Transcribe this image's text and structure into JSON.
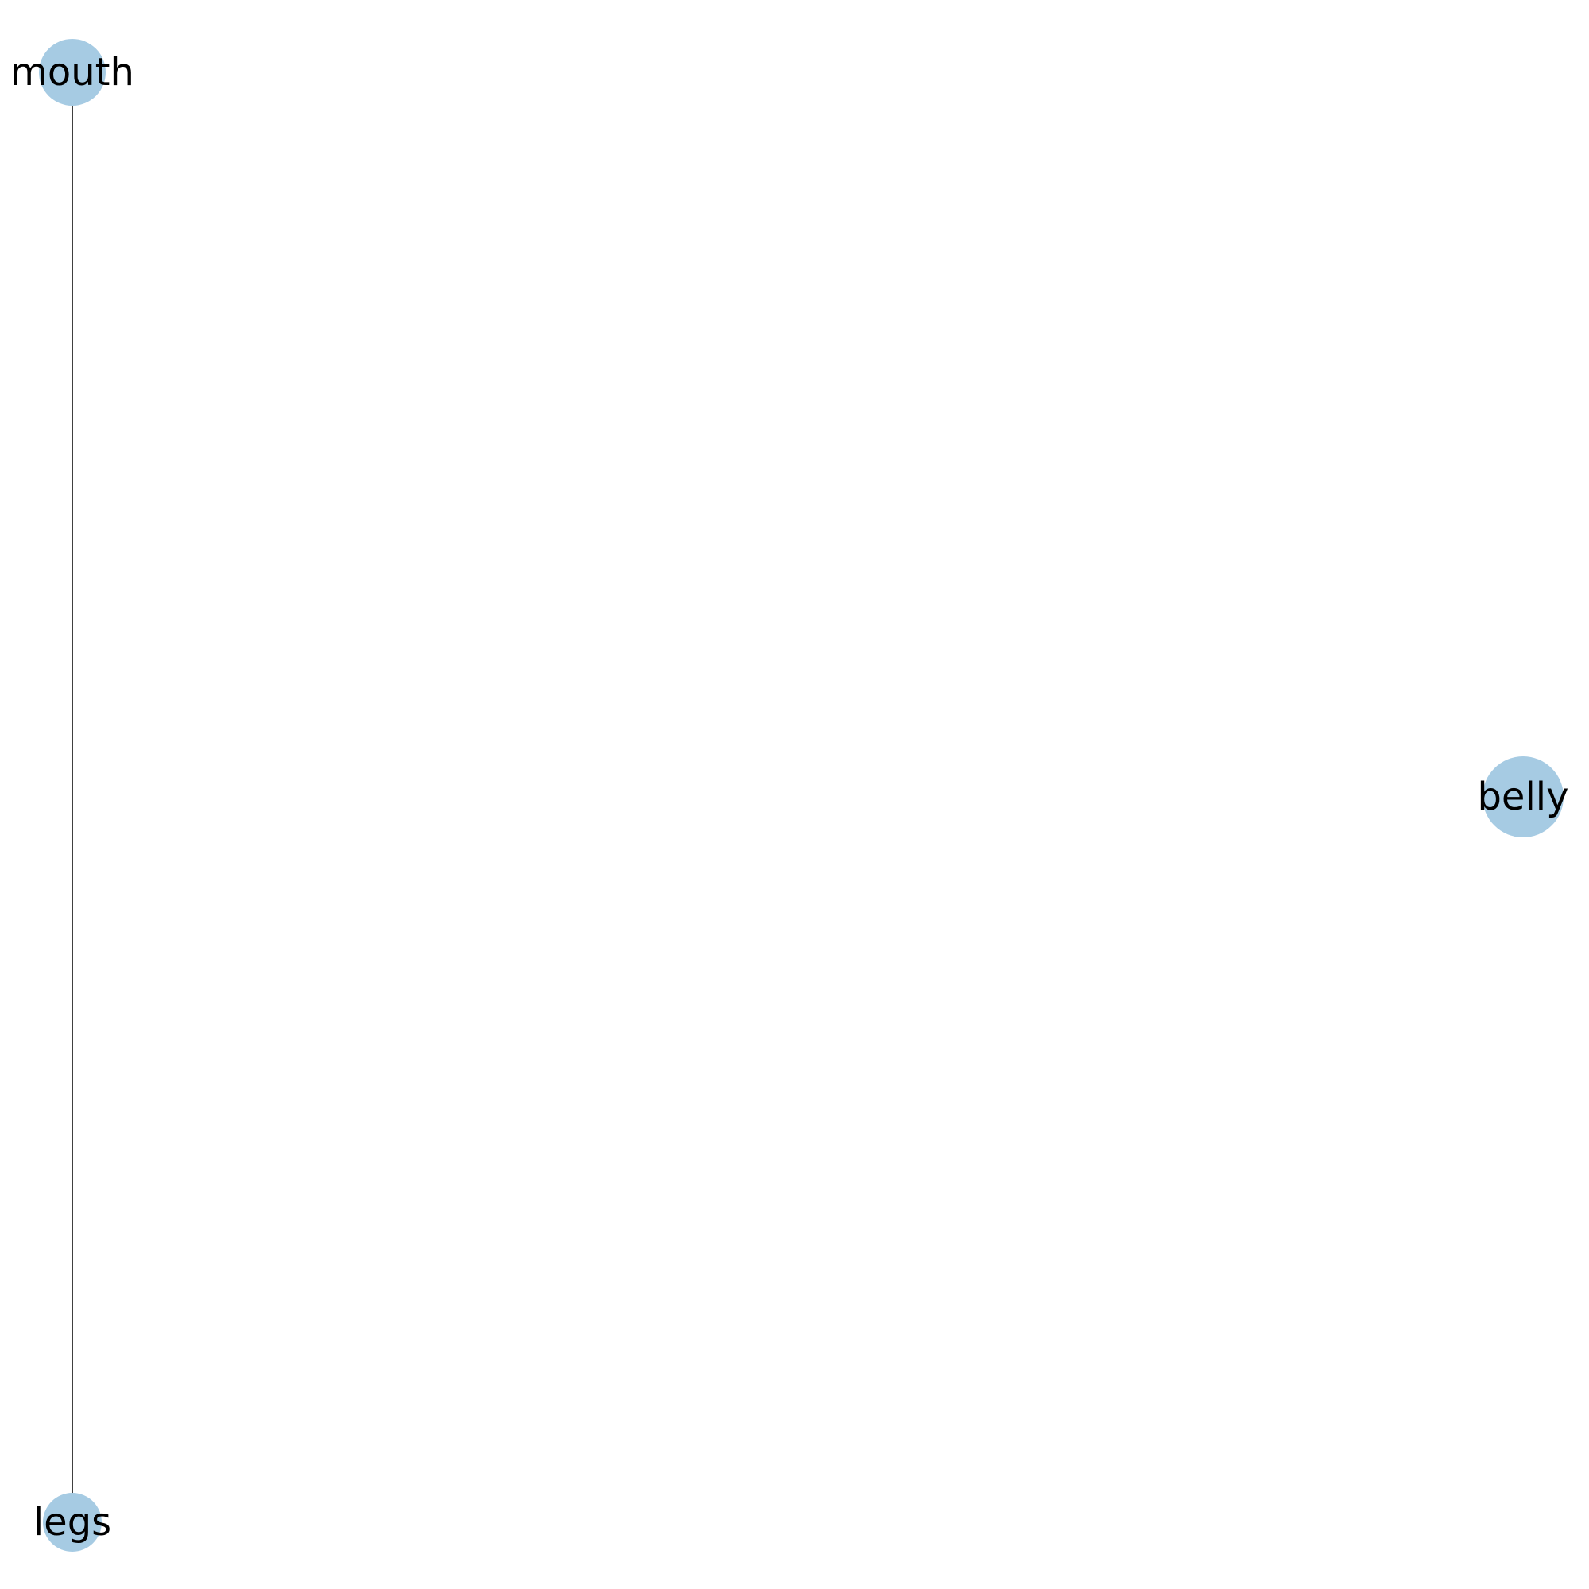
{
  "graph": {
    "node_color": "#a6cbe3",
    "edge_color": "#000000",
    "label_color": "#000000",
    "nodes": [
      {
        "id": "mouth",
        "label": "mouth"
      },
      {
        "id": "legs",
        "label": "legs"
      },
      {
        "id": "belly",
        "label": "belly"
      }
    ],
    "edges": [
      {
        "source": "mouth",
        "target": "legs"
      }
    ]
  }
}
